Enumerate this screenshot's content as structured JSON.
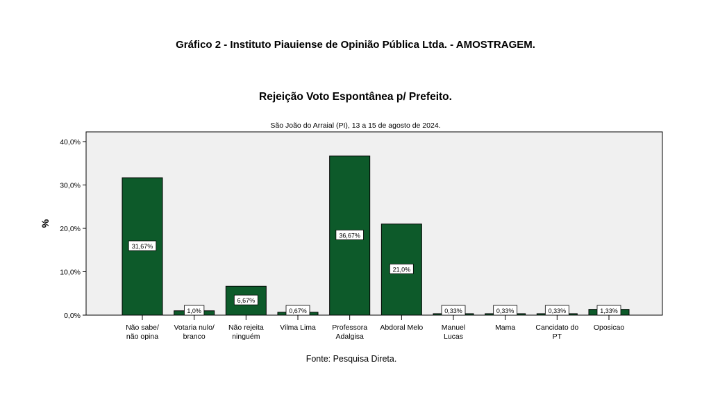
{
  "header": {
    "title": "Gráfico   2  -   Instituto Piauiense de Opinião Pública Ltda. - AMOSTRAGEM.",
    "chart_title": "Rejeição Voto Espontânea p/ Prefeito.",
    "subtitle": "São João do Arraial (PI), 13 a 15 de agosto de 2024.",
    "source": "Fonte: Pesquisa Direta."
  },
  "chart_data": {
    "type": "bar",
    "title": "Rejeição Voto Espontânea p/ Prefeito.",
    "subtitle": "São João do Arraial (PI), 13 a 15 de agosto de 2024.",
    "xlabel": "",
    "ylabel": "%",
    "ylim": [
      0,
      40
    ],
    "yticks": [
      "0,0%",
      "10,0%",
      "20,0%",
      "30,0%",
      "40,0%"
    ],
    "grid": false,
    "categories": [
      [
        "Não sabe/",
        "não opina"
      ],
      [
        "Votaria nulo/",
        "branco"
      ],
      [
        "Não rejeita",
        "ninguém"
      ],
      [
        "Vilma Lima"
      ],
      [
        "Professora",
        "Adalgisa"
      ],
      [
        "Abdoral Melo"
      ],
      [
        "Manuel",
        "Lucas"
      ],
      [
        "Mama"
      ],
      [
        "Cancidato do",
        "PT"
      ],
      [
        "Oposicao"
      ]
    ],
    "values": [
      31.67,
      1.0,
      6.67,
      0.67,
      36.67,
      21.0,
      0.33,
      0.33,
      0.33,
      1.33
    ],
    "data_labels": [
      "31,67%",
      "1,0%",
      "6,67%",
      "0,67%",
      "36,67%",
      "21,0%",
      "0,33%",
      "0,33%",
      "0,33%",
      "1,33%"
    ],
    "colors": {
      "bar": "#0d5a2a",
      "plot_bg": "#f0f0f0"
    }
  }
}
